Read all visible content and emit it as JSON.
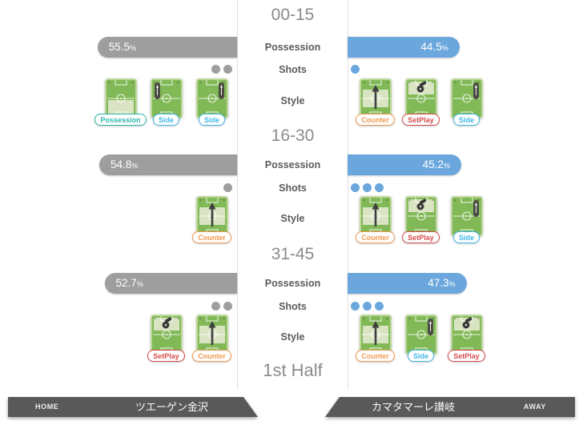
{
  "ui": {
    "percent_sign": "%"
  },
  "row_labels": {
    "possession": "Possession",
    "shots": "Shots",
    "style": "Style"
  },
  "half_label": "1st Half",
  "footer": {
    "home_tag": "HOME",
    "home_team": "ツエーゲン金沢",
    "away_team": "カマタマーレ讃岐",
    "away_tag": "AWAY"
  },
  "colors": {
    "home_bar": "#9e9e9e",
    "away_bar": "#6ba7dd",
    "home_dot": "#9e9e9e",
    "away_dot": "#6ba7dd",
    "pitch_green": "#82b957",
    "pitch_border": "#bdd89b",
    "banner": "#595959",
    "style_colors": {
      "possession": "#2eb5ab",
      "side_left": "#41b9e8",
      "side_right": "#41b9e8",
      "counter": "#f09a52",
      "setplay": "#d84c4c"
    }
  },
  "periods": [
    {
      "label": "00-15",
      "home": {
        "possession_pct": "55.5",
        "shots": 2,
        "styles": [
          {
            "type": "possession",
            "label": "Possession"
          },
          {
            "type": "side_left",
            "label": "Side"
          },
          {
            "type": "side_right",
            "label": "Side"
          }
        ]
      },
      "away": {
        "possession_pct": "44.5",
        "shots": 1,
        "styles": [
          {
            "type": "counter",
            "label": "Counter"
          },
          {
            "type": "setplay",
            "label": "SetPlay"
          },
          {
            "type": "side_right",
            "label": "Side"
          }
        ]
      }
    },
    {
      "label": "16-30",
      "home": {
        "possession_pct": "54.8",
        "shots": 1,
        "styles": [
          {
            "type": "counter",
            "label": "Counter"
          }
        ]
      },
      "away": {
        "possession_pct": "45.2",
        "shots": 3,
        "styles": [
          {
            "type": "counter",
            "label": "Counter"
          },
          {
            "type": "setplay",
            "label": "SetPlay"
          },
          {
            "type": "side_right",
            "label": "Side"
          }
        ]
      }
    },
    {
      "label": "31-45",
      "home": {
        "possession_pct": "52.7",
        "shots": 2,
        "styles": [
          {
            "type": "setplay",
            "label": "SetPlay"
          },
          {
            "type": "counter",
            "label": "Counter"
          }
        ]
      },
      "away": {
        "possession_pct": "47.3",
        "shots": 3,
        "styles": [
          {
            "type": "counter",
            "label": "Counter"
          },
          {
            "type": "side_right",
            "label": "Side"
          },
          {
            "type": "setplay",
            "label": "SetPlay"
          }
        ]
      }
    }
  ]
}
